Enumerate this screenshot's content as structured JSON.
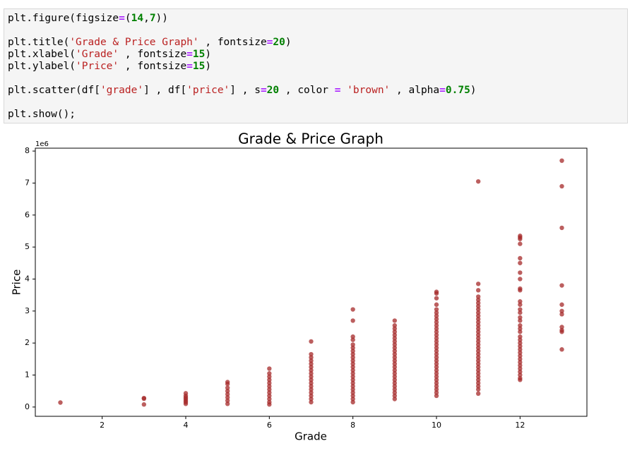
{
  "code": {
    "lines": [
      [
        "plt.figure(figsize",
        "=",
        "(",
        "14",
        ",",
        "7",
        "))"
      ],
      [],
      [
        "plt.title(",
        "'Grade & Price Graph'",
        " , fontsize",
        "=",
        "20",
        ")"
      ],
      [
        "plt.xlabel(",
        "'Grade'",
        " , fontsize",
        "=",
        "15",
        ")"
      ],
      [
        "plt.ylabel(",
        "'Price'",
        " , fontsize",
        "=",
        "15",
        ")"
      ],
      [],
      [
        "plt.scatter(df[",
        "'grade'",
        "] , df[",
        "'price'",
        "] , s",
        "=",
        "20",
        " , color ",
        "=",
        " 'brown'",
        " , alpha",
        "=",
        "0.75",
        ")"
      ],
      [],
      [
        "plt.show();"
      ]
    ]
  },
  "chart_data": {
    "type": "scatter",
    "title": "Grade & Price Graph",
    "x_label": "Grade",
    "y_label": "Price",
    "y_offset_label": "1e6",
    "color": "#a52a2a",
    "opacity": 0.75,
    "xlim": [
      0.4,
      13.6
    ],
    "xticks": [
      2,
      4,
      6,
      8,
      10,
      12
    ],
    "ylim": [
      -0.29,
      8.09
    ],
    "yticks": [
      0,
      1,
      2,
      3,
      4,
      5,
      6,
      7,
      8
    ],
    "x": [
      1,
      3,
      3,
      3,
      4,
      4,
      4,
      4,
      4,
      4,
      4,
      5,
      5,
      5,
      5,
      5,
      5,
      5,
      5,
      6,
      6,
      6,
      6,
      6,
      6,
      6,
      6,
      6,
      6,
      6,
      6,
      7,
      7,
      7,
      7,
      7,
      7,
      7,
      7,
      7,
      7,
      7,
      7,
      7,
      7,
      7,
      7,
      7,
      8,
      8,
      8,
      8,
      8,
      8,
      8,
      8,
      8,
      8,
      8,
      8,
      8,
      8,
      8,
      8,
      8,
      8,
      8,
      8,
      8,
      8,
      8,
      9,
      9,
      9,
      9,
      9,
      9,
      9,
      9,
      9,
      9,
      9,
      9,
      9,
      9,
      9,
      9,
      9,
      9,
      9,
      9,
      9,
      9,
      9,
      9,
      9,
      10,
      10,
      10,
      10,
      10,
      10,
      10,
      10,
      10,
      10,
      10,
      10,
      10,
      10,
      10,
      10,
      10,
      10,
      10,
      10,
      10,
      10,
      10,
      10,
      10,
      10,
      10,
      10,
      10,
      10,
      10,
      10,
      11,
      11,
      11,
      11,
      11,
      11,
      11,
      11,
      11,
      11,
      11,
      11,
      11,
      11,
      11,
      11,
      11,
      11,
      11,
      11,
      11,
      11,
      11,
      11,
      11,
      11,
      11,
      11,
      11,
      11,
      11,
      11,
      11,
      11,
      12,
      12,
      12,
      12,
      12,
      12,
      12,
      12,
      12,
      12,
      12,
      12,
      12,
      12,
      12,
      12,
      12,
      12,
      12,
      12,
      12,
      12,
      12,
      12,
      12,
      12,
      12,
      12,
      12,
      12,
      12,
      12,
      12,
      12,
      13,
      13,
      13,
      13,
      13,
      13,
      13,
      13,
      13,
      13,
      13
    ],
    "values": [
      0.14,
      0.28,
      0.26,
      0.08,
      0.43,
      0.35,
      0.3,
      0.25,
      0.2,
      0.15,
      0.1,
      0.78,
      0.72,
      0.6,
      0.5,
      0.4,
      0.3,
      0.2,
      0.1,
      1.2,
      1.05,
      0.95,
      0.85,
      0.75,
      0.65,
      0.55,
      0.45,
      0.35,
      0.25,
      0.15,
      0.08,
      2.05,
      1.65,
      1.55,
      1.45,
      1.35,
      1.25,
      1.15,
      1.05,
      0.95,
      0.85,
      0.75,
      0.65,
      0.55,
      0.45,
      0.35,
      0.25,
      0.15,
      3.05,
      2.7,
      2.2,
      2.1,
      1.95,
      1.85,
      1.75,
      1.65,
      1.55,
      1.45,
      1.35,
      1.25,
      1.15,
      1.05,
      0.95,
      0.85,
      0.75,
      0.65,
      0.55,
      0.45,
      0.35,
      0.25,
      0.15,
      2.7,
      2.55,
      2.45,
      2.35,
      2.25,
      2.15,
      2.05,
      1.95,
      1.85,
      1.75,
      1.65,
      1.55,
      1.45,
      1.35,
      1.25,
      1.15,
      1.05,
      0.95,
      0.85,
      0.75,
      0.65,
      0.55,
      0.45,
      0.35,
      0.25,
      3.6,
      3.55,
      3.4,
      3.2,
      3.05,
      2.95,
      2.85,
      2.75,
      2.65,
      2.55,
      2.45,
      2.35,
      2.25,
      2.15,
      2.05,
      1.95,
      1.85,
      1.75,
      1.65,
      1.55,
      1.45,
      1.35,
      1.25,
      1.15,
      1.05,
      0.95,
      0.85,
      0.75,
      0.65,
      0.55,
      0.45,
      0.35,
      7.05,
      3.85,
      3.65,
      3.45,
      3.35,
      3.25,
      3.15,
      3.05,
      2.95,
      2.85,
      2.75,
      2.65,
      2.55,
      2.45,
      2.35,
      2.25,
      2.15,
      2.05,
      1.95,
      1.85,
      1.75,
      1.65,
      1.55,
      1.45,
      1.35,
      1.25,
      1.15,
      1.05,
      0.95,
      0.85,
      0.75,
      0.65,
      0.55,
      0.42,
      5.35,
      5.3,
      5.25,
      5.1,
      4.65,
      4.5,
      4.2,
      4,
      3.7,
      3.65,
      3.3,
      3.2,
      3.05,
      2.95,
      2.8,
      2.7,
      2.55,
      2.45,
      2.35,
      2.2,
      2.1,
      2,
      1.9,
      1.8,
      1.7,
      1.6,
      1.5,
      1.4,
      1.3,
      1.2,
      1.1,
      1,
      0.9,
      0.85,
      7.7,
      6.9,
      5.6,
      3.8,
      3.2,
      3,
      2.9,
      2.5,
      2.4,
      2.35,
      1.8
    ]
  }
}
